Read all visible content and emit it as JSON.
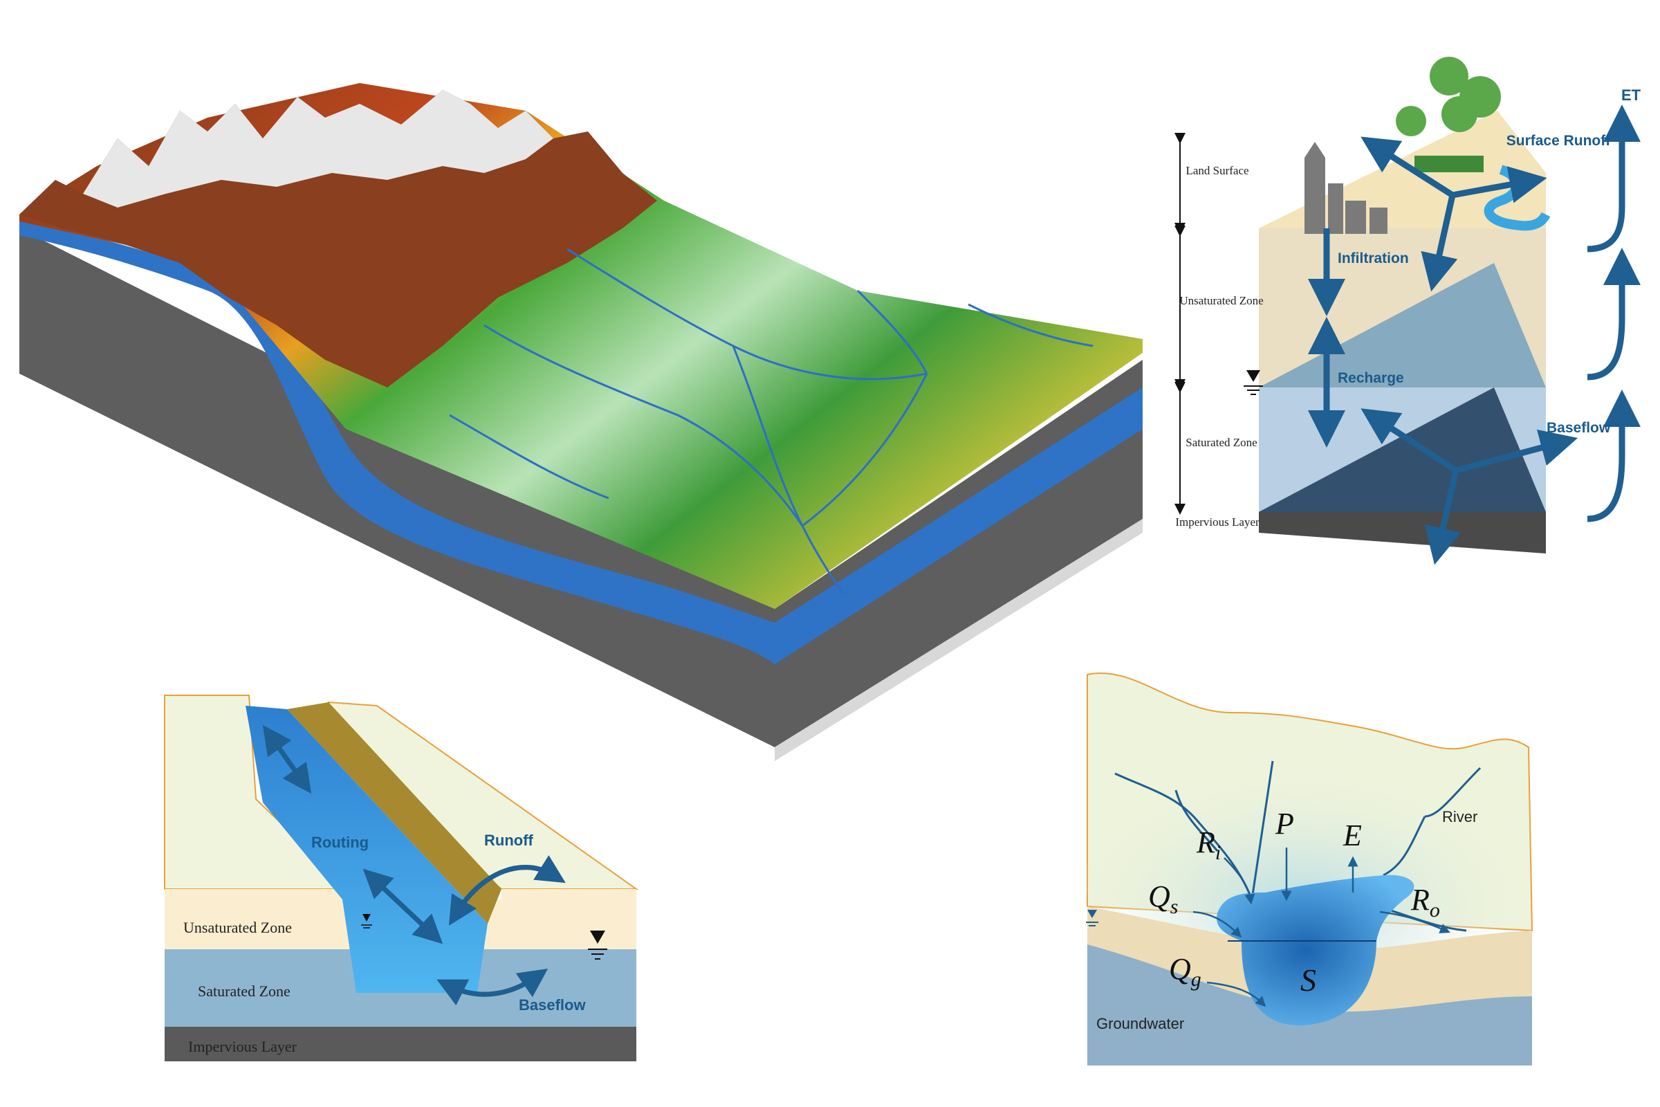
{
  "colors": {
    "flow_arrow": "#1f5f91",
    "river": "#2e6fc4",
    "unsaturated": "#f3e8cc",
    "saturated": "#8fb6d0",
    "impervious": "#5a5a5a",
    "land_surface": "#eef3dc"
  },
  "column": {
    "zones": {
      "land_surface": "Land Surface",
      "unsaturated": "Unsaturated Zone",
      "saturated": "Saturated Zone",
      "impervious": "Impervious Layer"
    },
    "flows": {
      "surface_runoff": "Surface Runoff",
      "infiltration": "Infiltration",
      "recharge": "Recharge",
      "baseflow": "Baseflow",
      "et": "ET"
    }
  },
  "channel": {
    "zones": {
      "unsaturated": "Unsaturated Zone",
      "saturated": "Saturated Zone",
      "impervious": "Impervious Layer"
    },
    "flows": {
      "routing": "Routing",
      "runoff": "Runoff",
      "baseflow": "Baseflow"
    }
  },
  "lake": {
    "labels": {
      "river": "River",
      "groundwater": "Groundwater"
    },
    "symbols": {
      "ri": "R",
      "ri_sub": "i",
      "p": "P",
      "e": "E",
      "qs": "Q",
      "qs_sub": "s",
      "ro": "R",
      "ro_sub": "o",
      "qg": "Q",
      "qg_sub": "g",
      "s": "S"
    }
  }
}
